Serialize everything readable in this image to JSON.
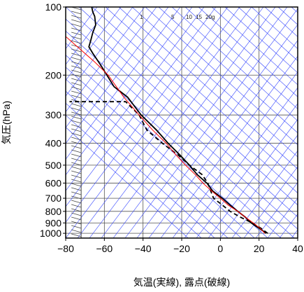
{
  "chart_data": {
    "type": "line",
    "xlabel": "気温(実線), 露点(破線)",
    "ylabel": "気圧(hPa)",
    "x_ticks": [
      -80,
      -60,
      -40,
      -20,
      0,
      20,
      40
    ],
    "y_ticks": [
      100,
      200,
      300,
      400,
      500,
      600,
      700,
      800,
      900,
      1000
    ],
    "xlim": [
      -80,
      40
    ],
    "ylim": [
      1050,
      100
    ],
    "y_scale": "log",
    "mixing_ratio_labels": [
      "1",
      "5",
      "10",
      "15",
      "20",
      "g"
    ],
    "series": [
      {
        "role": "temperature",
        "style": "solid",
        "color": "#000000",
        "points": [
          [
            23.5,
            1000
          ],
          [
            22,
            975
          ],
          [
            20,
            950
          ],
          [
            18,
            925
          ],
          [
            16,
            900
          ],
          [
            13,
            850
          ],
          [
            9,
            800
          ],
          [
            5,
            750
          ],
          [
            1,
            700
          ],
          [
            -4,
            650
          ],
          [
            -7,
            600
          ],
          [
            -12,
            550
          ],
          [
            -16,
            500
          ],
          [
            -21,
            450
          ],
          [
            -27,
            400
          ],
          [
            -33,
            350
          ],
          [
            -41,
            300
          ],
          [
            -48,
            250
          ],
          [
            -55,
            225
          ],
          [
            -62,
            180
          ],
          [
            -66,
            160
          ],
          [
            -68,
            150
          ],
          [
            -67,
            140
          ],
          [
            -66,
            130
          ],
          [
            -64.5,
            120
          ],
          [
            -65,
            110
          ],
          [
            -66,
            105
          ],
          [
            -66.5,
            100
          ]
        ]
      },
      {
        "role": "dewpoint",
        "style": "dashed",
        "color": "#000000",
        "points": [
          [
            24.5,
            1000
          ],
          [
            21,
            950
          ],
          [
            16.5,
            900
          ],
          [
            10.5,
            850
          ],
          [
            5,
            800
          ],
          [
            1,
            750
          ],
          [
            -3.5,
            700
          ],
          [
            -5,
            650
          ],
          [
            -6.5,
            600
          ],
          [
            -9.5,
            550
          ],
          [
            -16,
            500
          ],
          [
            -22,
            450
          ],
          [
            -30,
            400
          ],
          [
            -38,
            350
          ],
          [
            -42,
            300
          ],
          [
            -49,
            262
          ],
          [
            -78,
            262
          ]
        ]
      },
      {
        "role": "parcel",
        "style": "solid",
        "color": "#ff0000",
        "points": [
          [
            23,
            1000
          ],
          [
            20.5,
            950
          ],
          [
            17,
            900
          ],
          [
            13,
            850
          ],
          [
            9,
            800
          ],
          [
            4,
            750
          ],
          [
            0,
            700
          ],
          [
            -4.5,
            650
          ],
          [
            -9,
            600
          ],
          [
            -13,
            550
          ],
          [
            -18,
            500
          ],
          [
            -23,
            450
          ],
          [
            -28,
            400
          ],
          [
            -35,
            350
          ],
          [
            -42,
            300
          ],
          [
            -50,
            250
          ],
          [
            -58,
            200
          ],
          [
            -65,
            175
          ],
          [
            -80,
            135
          ]
        ]
      }
    ],
    "colors": {
      "isotherm": "#3344ff",
      "gridline": "#555555",
      "frame": "#000000",
      "wind_barb": "#444444"
    },
    "grid": true
  }
}
